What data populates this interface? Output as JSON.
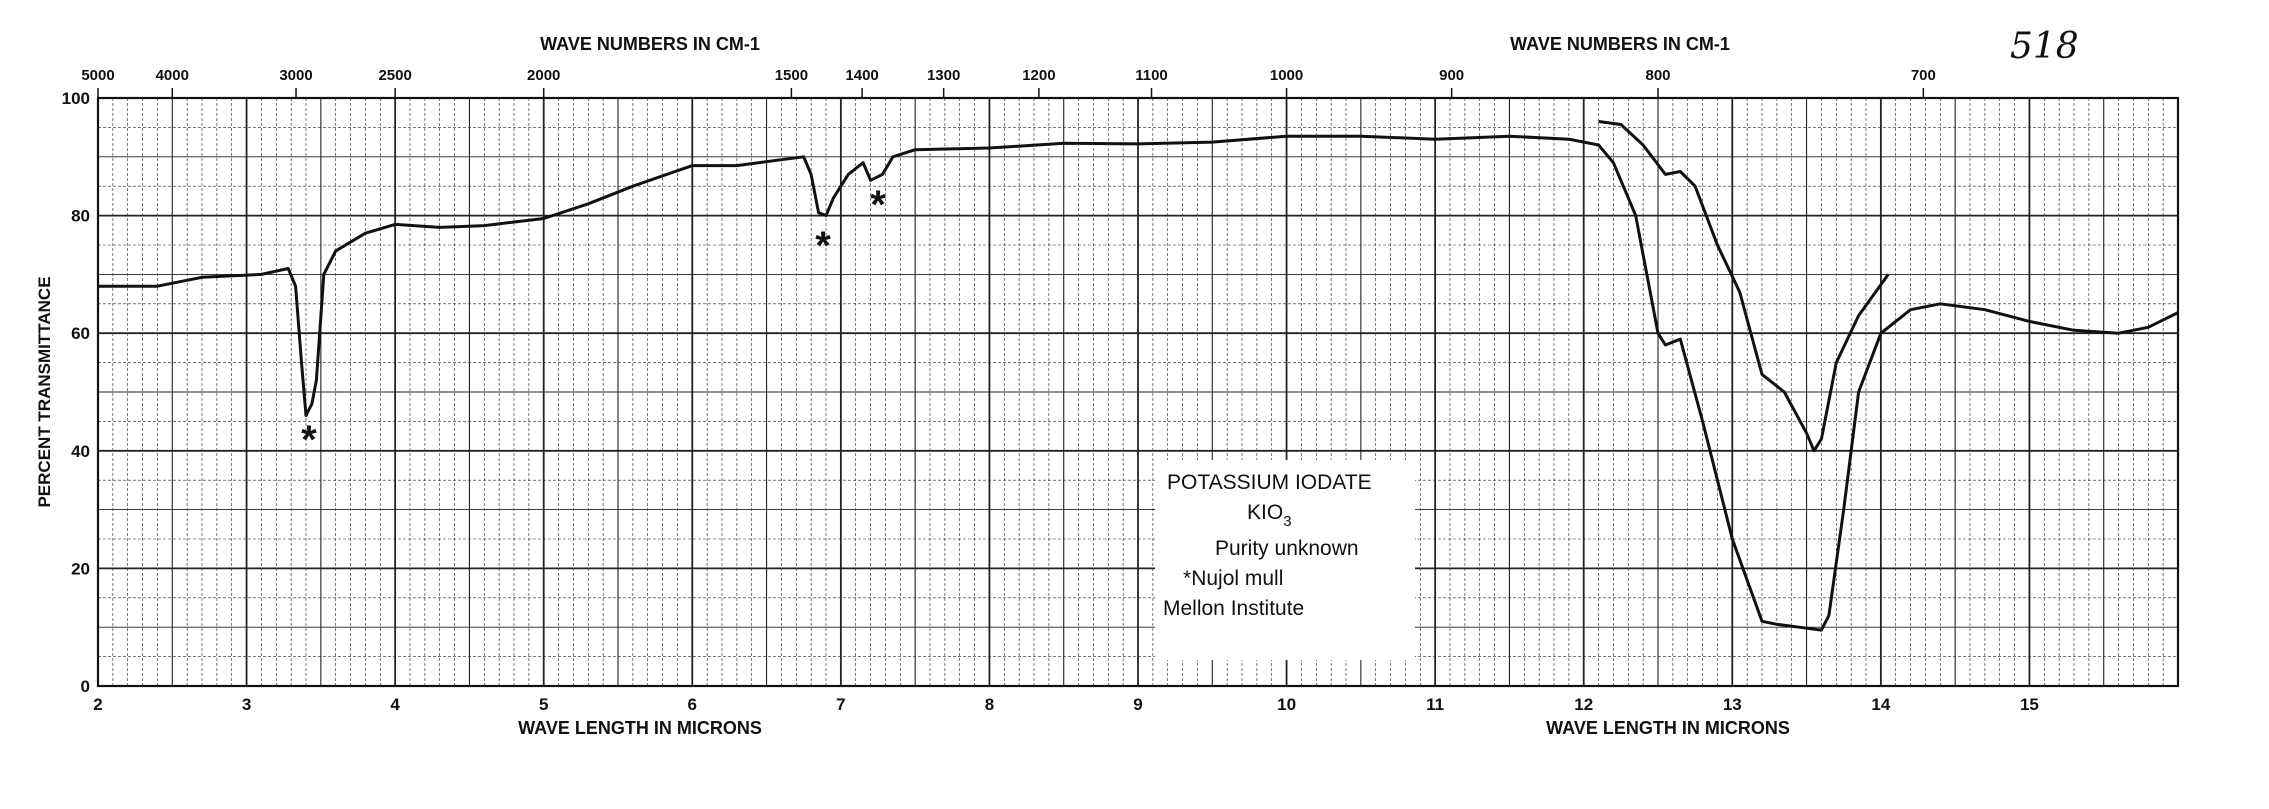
{
  "page_number": "518",
  "info": {
    "compound": "POTASSIUM IODATE",
    "formula_main": "KIO",
    "formula_sub": "3",
    "purity": "Purity unknown",
    "note": "Nujol mull",
    "note_marker": "*",
    "source": "Mellon Institute"
  },
  "chart_data": {
    "type": "line",
    "title": "",
    "xlabel": "WAVE LENGTH IN MICRONS",
    "ylabel": "PERCENT TRANSMITTANCE",
    "top_axis_label": "WAVE NUMBERS IN CM-1",
    "xlim": [
      2,
      16
    ],
    "ylim": [
      0,
      100
    ],
    "grid": true,
    "x_ticks": [
      "2",
      "3",
      "4",
      "5",
      "6",
      "7",
      "8",
      "9",
      "10",
      "11",
      "12",
      "13",
      "14",
      "15"
    ],
    "y_ticks": [
      "0",
      "20",
      "40",
      "60",
      "80",
      "100"
    ],
    "top_ticks": [
      {
        "x": 2.0,
        "label": "5000"
      },
      {
        "x": 2.5,
        "label": "4000"
      },
      {
        "x": 3.333,
        "label": "3000"
      },
      {
        "x": 4.0,
        "label": "2500"
      },
      {
        "x": 5.0,
        "label": "2000"
      },
      {
        "x": 6.667,
        "label": "1500"
      },
      {
        "x": 7.143,
        "label": "1400"
      },
      {
        "x": 7.692,
        "label": "1300"
      },
      {
        "x": 8.333,
        "label": "1200"
      },
      {
        "x": 9.091,
        "label": "1100"
      },
      {
        "x": 10.0,
        "label": "1000"
      },
      {
        "x": 11.111,
        "label": "900"
      },
      {
        "x": 12.5,
        "label": "800"
      },
      {
        "x": 14.286,
        "label": "700"
      }
    ],
    "series": [
      {
        "points": [
          [
            2.0,
            68
          ],
          [
            2.4,
            68
          ],
          [
            2.7,
            69.5
          ],
          [
            3.1,
            70
          ],
          [
            3.28,
            71
          ],
          [
            3.33,
            68
          ],
          [
            3.37,
            55
          ],
          [
            3.4,
            46
          ],
          [
            3.44,
            48
          ],
          [
            3.47,
            52
          ],
          [
            3.52,
            70
          ],
          [
            3.6,
            74
          ],
          [
            3.8,
            77
          ],
          [
            4.0,
            78.5
          ],
          [
            4.3,
            78
          ],
          [
            4.6,
            78.3
          ],
          [
            5.0,
            79.5
          ],
          [
            5.3,
            82
          ],
          [
            5.6,
            85
          ],
          [
            6.0,
            88.5
          ],
          [
            6.3,
            88.5
          ],
          [
            6.6,
            89.5
          ],
          [
            6.75,
            90
          ],
          [
            6.8,
            87
          ],
          [
            6.85,
            80.5
          ],
          [
            6.9,
            80
          ],
          [
            6.95,
            83
          ],
          [
            7.05,
            87
          ],
          [
            7.15,
            89
          ],
          [
            7.2,
            86
          ],
          [
            7.28,
            87
          ],
          [
            7.35,
            90
          ],
          [
            7.5,
            91.2
          ],
          [
            8.0,
            91.5
          ],
          [
            8.5,
            92.3
          ],
          [
            9.0,
            92.2
          ],
          [
            9.5,
            92.5
          ],
          [
            10.0,
            93.5
          ],
          [
            10.5,
            93.5
          ],
          [
            11.0,
            93
          ],
          [
            11.5,
            93.5
          ],
          [
            11.9,
            93
          ],
          [
            12.1,
            92
          ],
          [
            12.2,
            89
          ],
          [
            12.35,
            80
          ],
          [
            12.5,
            60
          ],
          [
            12.55,
            58
          ],
          [
            12.65,
            59
          ],
          [
            12.8,
            45
          ],
          [
            13.0,
            25
          ],
          [
            13.2,
            11
          ],
          [
            13.3,
            10.5
          ],
          [
            13.45,
            10
          ],
          [
            13.6,
            9.5
          ],
          [
            13.65,
            12
          ],
          [
            13.75,
            30
          ],
          [
            13.85,
            50
          ],
          [
            14.0,
            60
          ],
          [
            14.2,
            64
          ],
          [
            14.4,
            65
          ],
          [
            14.7,
            64
          ],
          [
            15.0,
            62
          ],
          [
            15.3,
            60.5
          ],
          [
            15.6,
            60
          ],
          [
            15.8,
            61
          ],
          [
            16.0,
            63.5
          ]
        ]
      },
      {
        "points": [
          [
            12.1,
            96
          ],
          [
            12.25,
            95.5
          ],
          [
            12.4,
            92
          ],
          [
            12.55,
            87
          ],
          [
            12.65,
            87.5
          ],
          [
            12.75,
            85
          ],
          [
            12.9,
            75
          ],
          [
            13.05,
            67
          ],
          [
            13.2,
            53
          ],
          [
            13.35,
            50
          ],
          [
            13.5,
            43
          ],
          [
            13.55,
            40
          ],
          [
            13.6,
            42
          ],
          [
            13.7,
            55
          ],
          [
            13.85,
            63
          ],
          [
            14.05,
            70
          ]
        ]
      }
    ],
    "markers": [
      {
        "x": 3.42,
        "y": 42,
        "label": "*"
      },
      {
        "x": 6.88,
        "y": 75,
        "label": "*"
      },
      {
        "x": 7.25,
        "y": 82,
        "label": "*"
      }
    ]
  }
}
